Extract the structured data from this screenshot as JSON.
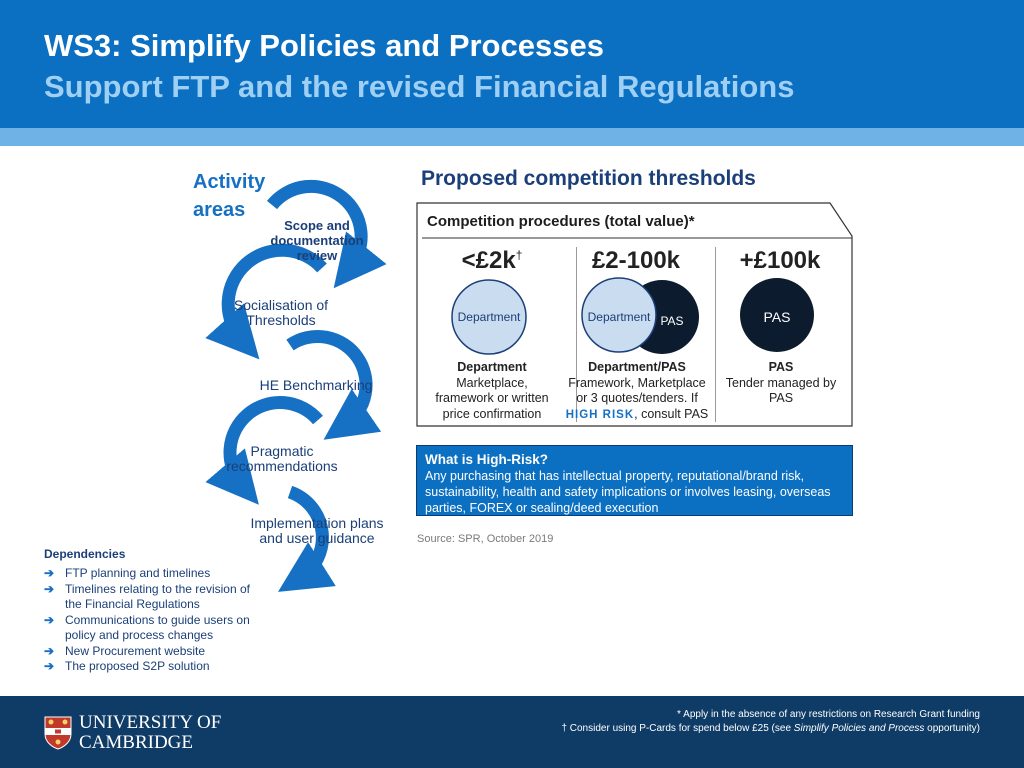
{
  "header": {
    "title": "WS3: Simplify Policies and Processes",
    "subtitle": "Support FTP and the revised Financial Regulations"
  },
  "activity": {
    "heading_line1": "Activity",
    "heading_line2": "areas",
    "steps": [
      {
        "line1": "Scope and",
        "line2": "documentation",
        "line3": "review"
      },
      {
        "line1": "Socialisation of",
        "line2": "Thresholds"
      },
      {
        "line1": "HE Benchmarking"
      },
      {
        "line1": "Pragmatic",
        "line2": "recommendations"
      },
      {
        "line1": "Implementation plans",
        "line2": "and user guidance"
      }
    ]
  },
  "dependencies": {
    "title": "Dependencies",
    "items": [
      {
        "line1": "FTP planning and timelines",
        "line2": ""
      },
      {
        "line1": "Timelines relating to the revision of",
        "line2": "the Financial Regulations"
      },
      {
        "line1": "Communications to guide users on",
        "line2": "policy and process changes"
      },
      {
        "line1": "New Procurement website",
        "line2": ""
      },
      {
        "line1": "The proposed S2P solution",
        "line2": ""
      }
    ],
    "arrow_glyph": "➔"
  },
  "thresholds": {
    "heading": "Proposed competition thresholds",
    "box_title": "Competition procedures (total value)*",
    "columns": [
      {
        "value": "<£2k",
        "mark": "†",
        "circle_labels": [
          "Department"
        ],
        "name": "Department",
        "desc": [
          "Marketplace,",
          "framework or written",
          "price confirmation"
        ]
      },
      {
        "value": "£2-100k",
        "mark": "",
        "circle_labels": [
          "Department",
          "PAS"
        ],
        "name": "Department/PAS",
        "desc": [
          "Framework, Marketplace",
          "or 3 quotes/tenders. If"
        ],
        "risk_word": "HIGH RISK",
        "risk_tail": ", consult PAS"
      },
      {
        "value": "+£100k",
        "mark": "",
        "circle_labels": [
          "PAS"
        ],
        "name": "PAS",
        "desc": [
          "Tender managed by",
          "PAS"
        ]
      }
    ],
    "high_risk": {
      "title": "What is High-Risk?",
      "lines": [
        "Any purchasing that has intellectual property, reputational/brand risk,",
        "sustainability, health and safety implications or involves leasing, overseas",
        "parties, FOREX or sealing/deed execution"
      ]
    },
    "source": "Source: SPR, October 2019"
  },
  "footer": {
    "logo_line1": "UNIVERSITY OF",
    "logo_line2": "CAMBRIDGE",
    "note1": "* Apply in the absence of any restrictions on Research Grant funding",
    "note2_pre": "† Consider using P-Cards for spend below £25 (see ",
    "note2_italic": "Simplify Policies and Process",
    "note2_post": " opportunity)"
  },
  "colors": {
    "header_blue": "#0b6fc2",
    "light_blue": "#6fb3e6",
    "dark_navy": "#0f3c66",
    "circle_light": "#c9dcf0",
    "circle_dark": "#0d1b2e"
  }
}
